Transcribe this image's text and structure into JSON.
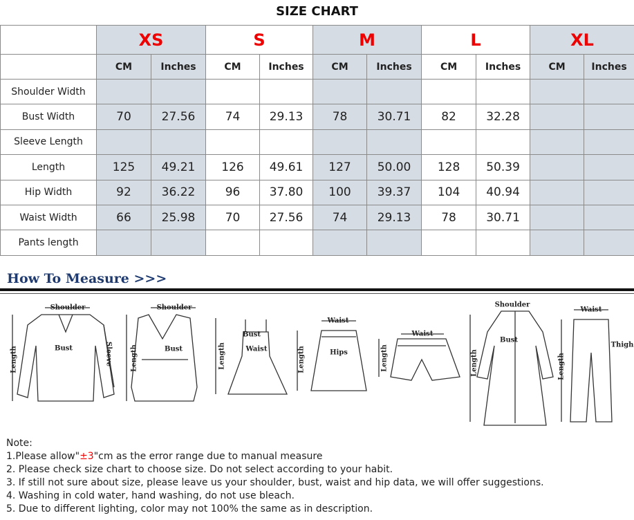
{
  "header": {
    "title": "SIZE CHART"
  },
  "table": {
    "sizes": [
      "XS",
      "S",
      "M",
      "L",
      "XL"
    ],
    "units": [
      "CM",
      "Inches"
    ],
    "rows": [
      {
        "label": "Shoulder Width",
        "cells": [
          null,
          null,
          null,
          null,
          null,
          null,
          null,
          null,
          null,
          null
        ]
      },
      {
        "label": "Bust Width",
        "cells": [
          "70",
          "27.56",
          "74",
          "29.13",
          "78",
          "30.71",
          "82",
          "32.28",
          null,
          null
        ]
      },
      {
        "label": "Sleeve Length",
        "cells": [
          null,
          null,
          null,
          null,
          null,
          null,
          null,
          null,
          null,
          null
        ]
      },
      {
        "label": "Length",
        "cells": [
          "125",
          "49.21",
          "126",
          "49.61",
          "127",
          "50.00",
          "128",
          "50.39",
          null,
          null
        ]
      },
      {
        "label": "Hip Width",
        "cells": [
          "92",
          "36.22",
          "96",
          "37.80",
          "100",
          "39.37",
          "104",
          "40.94",
          null,
          null
        ]
      },
      {
        "label": "Waist Width",
        "cells": [
          "66",
          "25.98",
          "70",
          "27.56",
          "74",
          "29.13",
          "78",
          "30.71",
          null,
          null
        ]
      },
      {
        "label": "Pants length",
        "cells": [
          null,
          null,
          null,
          null,
          null,
          null,
          null,
          null,
          null,
          null
        ]
      }
    ]
  },
  "measure": {
    "heading": "How To Measure >>>",
    "figures": [
      {
        "labels": [
          "Shoulder",
          "Bust",
          "Length",
          "Sleeve"
        ]
      },
      {
        "labels": [
          "Shoulder",
          "Bust",
          "Length"
        ]
      },
      {
        "labels": [
          "Bust",
          "Waist",
          "Length"
        ]
      },
      {
        "labels": [
          "Waist",
          "Hips",
          "Length"
        ]
      },
      {
        "labels": [
          "Waist",
          "Length"
        ]
      },
      {
        "labels": [
          "Shoulder",
          "Bust",
          "Length"
        ]
      },
      {
        "labels": [
          "Waist",
          "Thigh",
          "Length"
        ]
      }
    ]
  },
  "notes": {
    "title": "Note:",
    "first": {
      "before": "1.Please allow\"",
      "highlight": "±3",
      "after": "\"cm as the error range due to manual measure"
    },
    "lines": [
      "2. Please check size chart to choose size. Do not select according to your habit.",
      "3. If still not sure about size, please leave us your shoulder, bust, waist and hip data, we will offer suggestions.",
      "4. Washing in cold water, hand washing, do not use bleach.",
      "5. Due to different lighting, color may not 100% the same as in description."
    ]
  }
}
